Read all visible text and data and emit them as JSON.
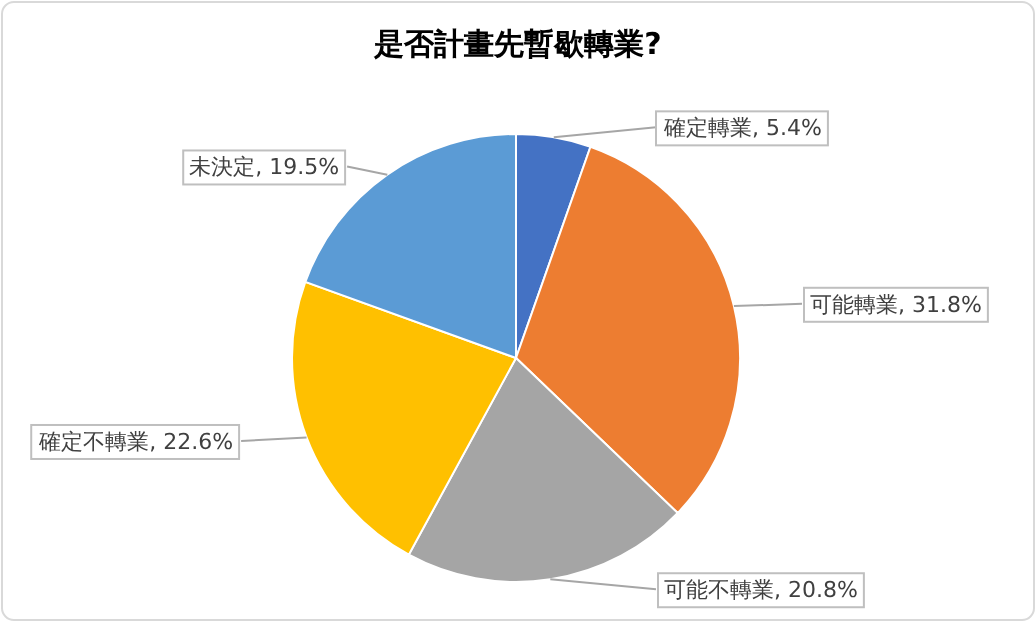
{
  "chart_data": {
    "type": "pie",
    "title": "是否計畫先暫歇轉業?",
    "categories": [
      "確定轉業",
      "可能轉業",
      "可能不轉業",
      "確定不轉業",
      "未決定"
    ],
    "values": [
      5.4,
      31.8,
      20.8,
      22.6,
      19.5
    ],
    "colors": [
      "#4472c4",
      "#ed7d31",
      "#a5a5a5",
      "#ffc000",
      "#5b9bd5"
    ],
    "value_labels": [
      ", 5.4%",
      ", 31.8%",
      ", 20.8%",
      ", 22.6%",
      ", 19.5%"
    ],
    "legend": false
  }
}
